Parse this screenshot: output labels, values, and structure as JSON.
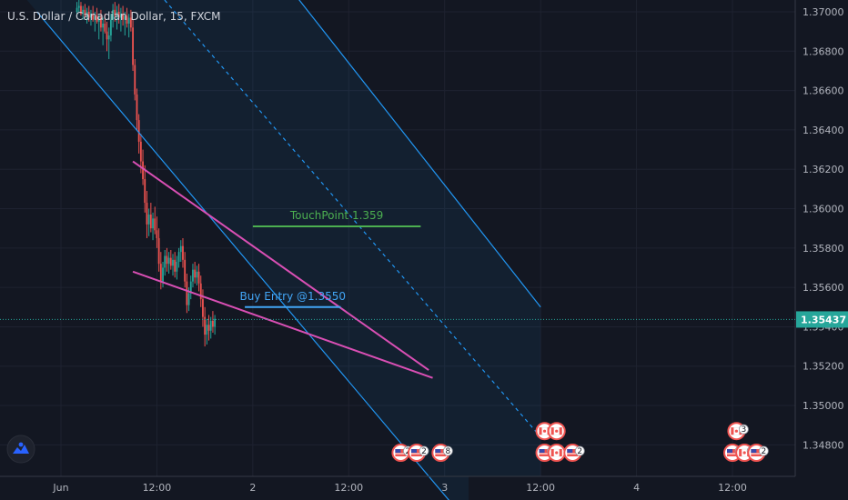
{
  "chart_data": {
    "type": "candlestick",
    "symbol": "U.S. Dollar / Canadian Dollar, 15, FXCM",
    "ylim": [
      1.3464,
      1.3706
    ],
    "y_ticks": [
      1.37,
      1.368,
      1.366,
      1.364,
      1.362,
      1.36,
      1.358,
      1.356,
      1.354,
      1.352,
      1.35,
      1.348
    ],
    "y_tick_labels": [
      "1.37000",
      "1.36800",
      "1.36600",
      "1.36400",
      "1.36200",
      "1.36000",
      "1.35800",
      "1.35600",
      "1.35400",
      "1.35200",
      "1.35000",
      "1.34800"
    ],
    "x_ticks": [
      {
        "label": "Jun",
        "bar": 0
      },
      {
        "label": "12:00",
        "bar": 48
      },
      {
        "label": "2",
        "bar": 96
      },
      {
        "label": "12:00",
        "bar": 144
      },
      {
        "label": "3",
        "bar": 192
      },
      {
        "label": "12:00",
        "bar": 240
      },
      {
        "label": "4",
        "bar": 288
      },
      {
        "label": "12:00",
        "bar": 336
      }
    ],
    "current_price": 1.35437,
    "current_price_label": "1.35437",
    "up_color": "#26a69a",
    "down_color": "#ef5350",
    "ohlc_start_bar": 8,
    "ohlc": [
      [
        1.37,
        1.3705,
        1.3697,
        1.3702
      ],
      [
        1.3702,
        1.3706,
        1.37,
        1.3703
      ],
      [
        1.3703,
        1.3705,
        1.3698,
        1.3699
      ],
      [
        1.3699,
        1.3703,
        1.3696,
        1.3701
      ],
      [
        1.3701,
        1.3704,
        1.3697,
        1.3698
      ],
      [
        1.3698,
        1.3702,
        1.3694,
        1.37
      ],
      [
        1.37,
        1.3703,
        1.3695,
        1.3697
      ],
      [
        1.3697,
        1.3701,
        1.3693,
        1.3699
      ],
      [
        1.3699,
        1.3703,
        1.3695,
        1.3696
      ],
      [
        1.3696,
        1.37,
        1.369,
        1.3698
      ],
      [
        1.3698,
        1.3702,
        1.3694,
        1.3695
      ],
      [
        1.3695,
        1.3699,
        1.3686,
        1.3697
      ],
      [
        1.3697,
        1.3701,
        1.369,
        1.3692
      ],
      [
        1.3692,
        1.3697,
        1.3683,
        1.3694
      ],
      [
        1.3694,
        1.3699,
        1.3689,
        1.369
      ],
      [
        1.369,
        1.3695,
        1.368,
        1.3686
      ],
      [
        1.3686,
        1.3692,
        1.3676,
        1.3688
      ],
      [
        1.3688,
        1.3699,
        1.3685,
        1.3696
      ],
      [
        1.3696,
        1.3704,
        1.3692,
        1.3701
      ],
      [
        1.3701,
        1.3705,
        1.3695,
        1.3698
      ],
      [
        1.3698,
        1.3703,
        1.3691,
        1.37
      ],
      [
        1.37,
        1.3704,
        1.3694,
        1.3697
      ],
      [
        1.3697,
        1.3702,
        1.369,
        1.3699
      ],
      [
        1.3699,
        1.3703,
        1.3693,
        1.3696
      ],
      [
        1.3696,
        1.37,
        1.3688,
        1.3698
      ],
      [
        1.3698,
        1.3702,
        1.3692,
        1.3694
      ],
      [
        1.3694,
        1.3699,
        1.3687,
        1.3697
      ],
      [
        1.3697,
        1.3701,
        1.369,
        1.3692
      ],
      [
        1.3692,
        1.3696,
        1.367,
        1.3673
      ],
      [
        1.3673,
        1.3676,
        1.3655,
        1.3658
      ],
      [
        1.3658,
        1.3661,
        1.364,
        1.3645
      ],
      [
        1.3645,
        1.3648,
        1.3628,
        1.3634
      ],
      [
        1.3634,
        1.3638,
        1.3618,
        1.3624
      ],
      [
        1.3624,
        1.363,
        1.3612,
        1.3615
      ],
      [
        1.3615,
        1.3622,
        1.3598,
        1.3603
      ],
      [
        1.3603,
        1.3609,
        1.3585,
        1.3592
      ],
      [
        1.3592,
        1.36,
        1.3586,
        1.3597
      ],
      [
        1.3597,
        1.3603,
        1.3588,
        1.359
      ],
      [
        1.359,
        1.3598,
        1.3584,
        1.3595
      ],
      [
        1.3595,
        1.3601,
        1.3587,
        1.3589
      ],
      [
        1.3589,
        1.3596,
        1.358,
        1.3585
      ],
      [
        1.3585,
        1.359,
        1.3568,
        1.3572
      ],
      [
        1.3572,
        1.3578,
        1.3559,
        1.3563
      ],
      [
        1.3563,
        1.3573,
        1.356,
        1.357
      ],
      [
        1.357,
        1.3579,
        1.3566,
        1.3576
      ],
      [
        1.3576,
        1.358,
        1.3568,
        1.3572
      ],
      [
        1.3572,
        1.3578,
        1.3567,
        1.3575
      ],
      [
        1.3575,
        1.3579,
        1.3569,
        1.3571
      ],
      [
        1.3571,
        1.3577,
        1.3566,
        1.3574
      ],
      [
        1.3574,
        1.3578,
        1.3565,
        1.3568
      ],
      [
        1.3568,
        1.3576,
        1.3564,
        1.3573
      ],
      [
        1.3573,
        1.358,
        1.357,
        1.3578
      ],
      [
        1.3578,
        1.3584,
        1.3573,
        1.3581
      ],
      [
        1.3581,
        1.3585,
        1.357,
        1.3574
      ],
      [
        1.3574,
        1.3578,
        1.356,
        1.3563
      ],
      [
        1.3563,
        1.3567,
        1.3547,
        1.3551
      ],
      [
        1.3551,
        1.356,
        1.3548,
        1.3557
      ],
      [
        1.3557,
        1.3566,
        1.3554,
        1.3563
      ],
      [
        1.3563,
        1.3572,
        1.356,
        1.3569
      ],
      [
        1.3569,
        1.3573,
        1.3562,
        1.3565
      ],
      [
        1.3565,
        1.3571,
        1.3561,
        1.3568
      ],
      [
        1.3568,
        1.3572,
        1.3558,
        1.3562
      ],
      [
        1.3562,
        1.3566,
        1.355,
        1.3554
      ],
      [
        1.3554,
        1.3559,
        1.354,
        1.3545
      ],
      [
        1.3545,
        1.355,
        1.353,
        1.3536
      ],
      [
        1.3536,
        1.3544,
        1.3531,
        1.3541
      ],
      [
        1.3541,
        1.3546,
        1.3533,
        1.3538
      ],
      [
        1.3538,
        1.3545,
        1.3534,
        1.3543
      ],
      [
        1.3543,
        1.3548,
        1.3537,
        1.354
      ],
      [
        1.354,
        1.3546,
        1.3536,
        1.3544
      ]
    ],
    "drawings": [
      {
        "type": "line",
        "name": "channel-upper",
        "label": "",
        "points": [
          [
            0,
            1.386
          ],
          [
            240,
            1.355
          ]
        ],
        "color": "#2196f3"
      },
      {
        "type": "line",
        "name": "channel-lower",
        "label": "",
        "points": [
          [
            -12,
            1.37
          ],
          [
            204,
            1.344
          ]
        ],
        "color": "#2196f3"
      },
      {
        "type": "line",
        "name": "channel-middle",
        "label": "",
        "points": [
          [
            40,
            1.372
          ],
          [
            240,
            1.3484
          ]
        ],
        "color": "#2196f3",
        "dashed": true
      },
      {
        "type": "line",
        "name": "wedge-upper",
        "label": "",
        "points": [
          [
            36,
            1.3624
          ],
          [
            184,
            1.3518
          ]
        ],
        "color": "#d94fb4"
      },
      {
        "type": "line",
        "name": "wedge-lower",
        "label": "",
        "points": [
          [
            36,
            1.3568
          ],
          [
            186,
            1.3514
          ]
        ],
        "color": "#d94fb4"
      },
      {
        "type": "hline",
        "name": "buy-entry",
        "label": "Buy Entry @1.3550",
        "price": 1.355,
        "from": 92,
        "to": 140,
        "color": "#42a5f5"
      },
      {
        "type": "hline",
        "name": "touchpoint",
        "label": "TouchPoint 1.359",
        "price": 1.3591,
        "from": 96,
        "to": 180,
        "color": "#4caf50"
      }
    ],
    "events": [
      {
        "bar": 170,
        "price": 1.3476,
        "flag": "us",
        "count": "2"
      },
      {
        "bar": 178,
        "price": 1.3476,
        "flag": "us",
        "count": "2"
      },
      {
        "bar": 190,
        "price": 1.3476,
        "flag": "us",
        "count": "8"
      },
      {
        "bar": 242,
        "price": 1.3487,
        "flag": "ca",
        "count": ""
      },
      {
        "bar": 248,
        "price": 1.3487,
        "flag": "ca",
        "count": ""
      },
      {
        "bar": 242,
        "price": 1.3476,
        "flag": "us",
        "count": "5"
      },
      {
        "bar": 248,
        "price": 1.3476,
        "flag": "ca",
        "count": ""
      },
      {
        "bar": 256,
        "price": 1.3476,
        "flag": "us",
        "count": "2"
      },
      {
        "bar": 338,
        "price": 1.3487,
        "flag": "ca",
        "count": "3"
      },
      {
        "bar": 336,
        "price": 1.3476,
        "flag": "us",
        "count": "3"
      },
      {
        "bar": 342,
        "price": 1.3476,
        "flag": "ca",
        "count": "1"
      },
      {
        "bar": 348,
        "price": 1.3476,
        "flag": "us",
        "count": "2"
      }
    ]
  }
}
